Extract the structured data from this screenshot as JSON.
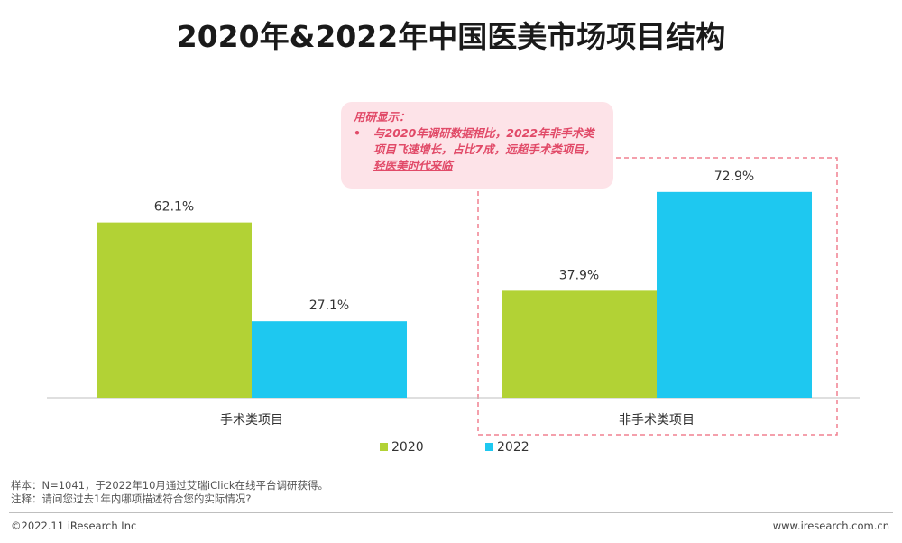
{
  "page": {
    "title": "2020年&2022年中国医美市场项目结构"
  },
  "callout": {
    "title": "用研显示：",
    "bullet": "•",
    "text_before": "与2020年调研数据相比，2022年非手术类项目飞速增长，占比7成，远超手术类项目，",
    "text_underlined": "轻医美时代来临"
  },
  "chart_data": {
    "type": "bar",
    "categories": [
      "手术类项目",
      "非手术类项目"
    ],
    "series": [
      {
        "name": "2020",
        "values": [
          62.1,
          37.9
        ],
        "labels": [
          "62.1%",
          "37.9%"
        ]
      },
      {
        "name": "2022",
        "values": [
          27.1,
          72.9
        ],
        "labels": [
          "27.1%",
          "72.9%"
        ]
      }
    ],
    "ylim": [
      0,
      100
    ],
    "grid": false,
    "legend_position": "bottom",
    "highlight_category": "非手术类项目",
    "colors": {
      "2020": "#b2d235",
      "2022": "#1ec8f0",
      "highlight": "#f08090",
      "axis": "#bfbfbf"
    }
  },
  "notes": {
    "sample": "样本：N=1041，于2022年10月通过艾瑞iClick在线平台调研获得。",
    "annotation": "注释：请问您过去1年内哪项描述符合您的实际情况?"
  },
  "footer": {
    "copyright": "©2022.11 iResearch Inc",
    "website": "www.iresearch.com.cn"
  }
}
